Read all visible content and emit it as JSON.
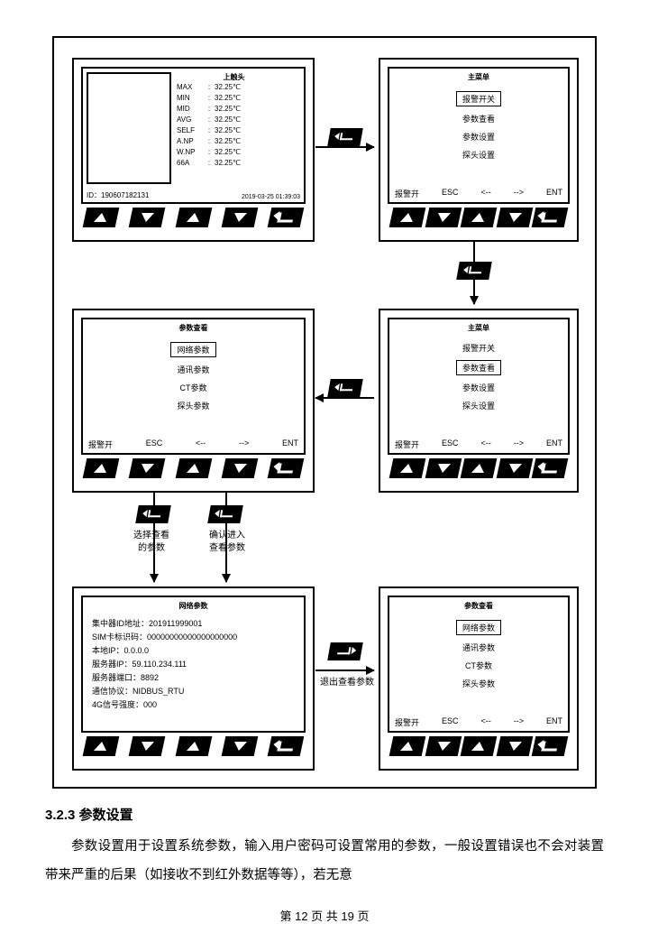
{
  "screens": {
    "s1": {
      "title": "上触头",
      "rows": [
        {
          "k": "MAX",
          "v": "32.25℃"
        },
        {
          "k": "MIN",
          "v": "32.25℃"
        },
        {
          "k": "MID",
          "v": "32.25℃"
        },
        {
          "k": "AVG",
          "v": "32.25℃"
        },
        {
          "k": "SELF",
          "v": "32.25℃"
        },
        {
          "k": "A.NP",
          "v": "32.25℃"
        },
        {
          "k": "W.NP",
          "v": "32.25℃"
        },
        {
          "k": "66A",
          "v": "32.25℃"
        }
      ],
      "id": "ID：190607182131",
      "ts": "2019-03-25   01:39:03"
    },
    "s2": {
      "title": "主菜单",
      "items": [
        "报警开关",
        "参数查看",
        "参数设置",
        "探头设置"
      ],
      "sel": 0,
      "footer": [
        "报警开",
        "ESC",
        "<--",
        "-->",
        "ENT"
      ]
    },
    "s3": {
      "title": "主菜单",
      "items": [
        "报警开关",
        "参数查看",
        "参数设置",
        "探头设置"
      ],
      "sel": 1,
      "footer": [
        "报警开",
        "ESC",
        "<--",
        "-->",
        "ENT"
      ]
    },
    "s4": {
      "title": "参数查看",
      "items": [
        "网络参数",
        "通讯参数",
        "CT参数",
        "探头参数"
      ],
      "sel": 0,
      "footer": [
        "报警开",
        "ESC",
        "<--",
        "-->",
        "ENT"
      ]
    },
    "s5": {
      "title": "网络参数",
      "lines": [
        "集中器ID地址：201911999001",
        "SIM卡标识码：00000000000000000000",
        "本地IP：0.0.0.0",
        "服务器IP：59.110.234.111",
        "服务器端口：8892",
        "通信协议：NIDBUS_RTU",
        "4G信号强度：000"
      ]
    },
    "s6": {
      "title": "参数查看",
      "items": [
        "网络参数",
        "通讯参数",
        "CT参数",
        "探头参数"
      ],
      "sel": 0,
      "footer": [
        "报警开",
        "ESC",
        "<--",
        "-->",
        "ENT"
      ]
    }
  },
  "labels": {
    "sel_param": "选择查看\n的参数",
    "confirm": "确认进入\n查看参数",
    "exit": "退出查看参数"
  },
  "section": {
    "heading": "3.2.3 参数设置",
    "p1": "参数设置用于设置系统参数，输入用户密码可设置常用的参数，一般设置错误也不会对装置带来严重的后果（如接收不到红外数据等等），若无意"
  },
  "pagenum": "第 12 页 共 19 页",
  "colors": {
    "stroke": "#000000",
    "bg": "#ffffff"
  }
}
